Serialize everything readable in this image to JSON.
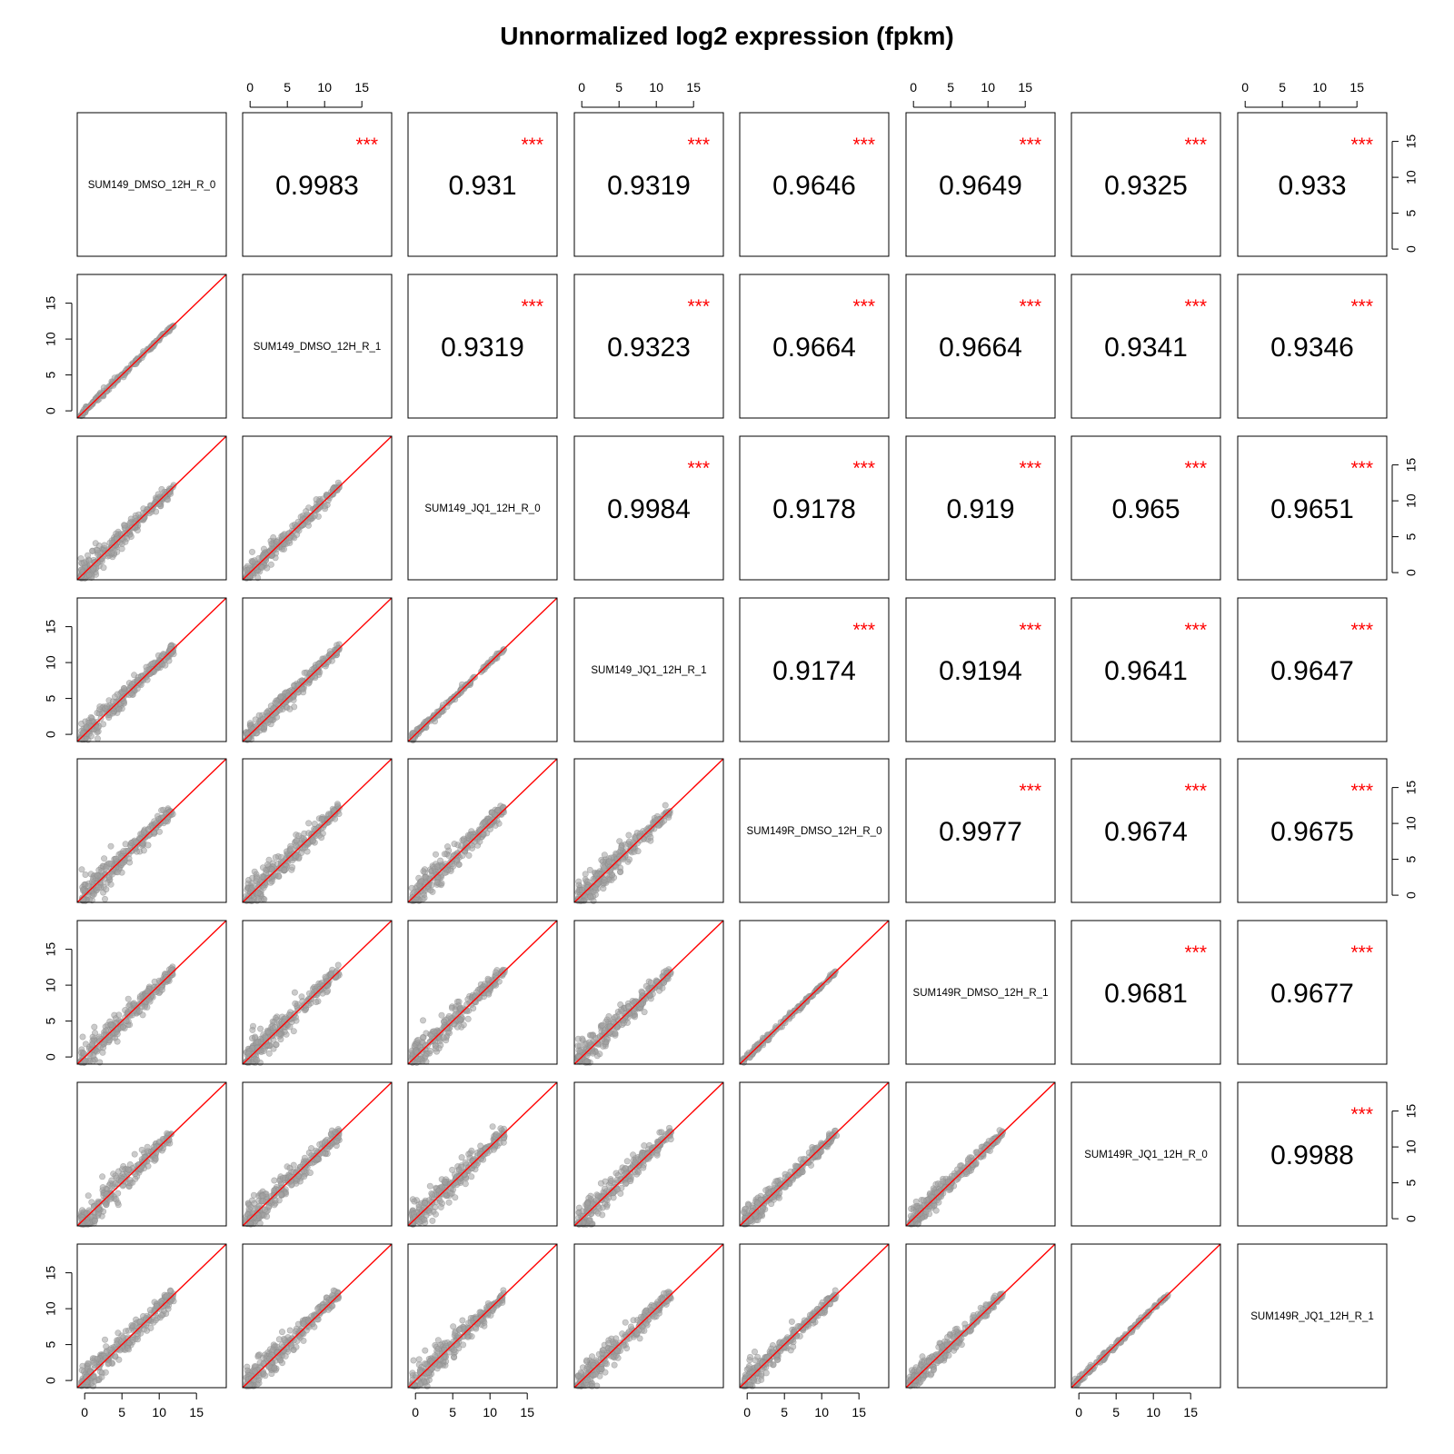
{
  "chart_data": {
    "type": "scatter",
    "title": "Unnormalized log2 expression (fpkm)",
    "matrix_type": "pairs plot: lower panels scatter with red y=x line, diagonal sample names, upper panels correlation coefficients",
    "axis_range": [
      -1,
      19
    ],
    "ticks": [
      0,
      5,
      10,
      15
    ],
    "tick_labels": [
      "0",
      "5",
      "10",
      "15"
    ],
    "samples": [
      "SUM149_DMSO_12H_R_0",
      "SUM149_DMSO_12H_R_1",
      "SUM149_JQ1_12H_R_0",
      "SUM149_JQ1_12H_R_1",
      "SUM149R_DMSO_12H_R_0",
      "SUM149R_DMSO_12H_R_1",
      "SUM149R_JQ1_12H_R_0",
      "SUM149R_JQ1_12H_R_1"
    ],
    "significance_label": "***",
    "correlations": [
      {
        "row": 0,
        "col": 1,
        "label": "0.9983"
      },
      {
        "row": 0,
        "col": 2,
        "label": "0.931"
      },
      {
        "row": 0,
        "col": 3,
        "label": "0.9319"
      },
      {
        "row": 0,
        "col": 4,
        "label": "0.9646"
      },
      {
        "row": 0,
        "col": 5,
        "label": "0.9649"
      },
      {
        "row": 0,
        "col": 6,
        "label": "0.9325"
      },
      {
        "row": 0,
        "col": 7,
        "label": "0.933"
      },
      {
        "row": 1,
        "col": 2,
        "label": "0.9319"
      },
      {
        "row": 1,
        "col": 3,
        "label": "0.9323"
      },
      {
        "row": 1,
        "col": 4,
        "label": "0.9664"
      },
      {
        "row": 1,
        "col": 5,
        "label": "0.9664"
      },
      {
        "row": 1,
        "col": 6,
        "label": "0.9341"
      },
      {
        "row": 1,
        "col": 7,
        "label": "0.9346"
      },
      {
        "row": 2,
        "col": 3,
        "label": "0.9984"
      },
      {
        "row": 2,
        "col": 4,
        "label": "0.9178"
      },
      {
        "row": 2,
        "col": 5,
        "label": "0.919"
      },
      {
        "row": 2,
        "col": 6,
        "label": "0.965"
      },
      {
        "row": 2,
        "col": 7,
        "label": "0.9651"
      },
      {
        "row": 3,
        "col": 4,
        "label": "0.9174"
      },
      {
        "row": 3,
        "col": 5,
        "label": "0.9194"
      },
      {
        "row": 3,
        "col": 6,
        "label": "0.9641"
      },
      {
        "row": 3,
        "col": 7,
        "label": "0.9647"
      },
      {
        "row": 4,
        "col": 5,
        "label": "0.9977"
      },
      {
        "row": 4,
        "col": 6,
        "label": "0.9674"
      },
      {
        "row": 4,
        "col": 7,
        "label": "0.9675"
      },
      {
        "row": 5,
        "col": 6,
        "label": "0.9681"
      },
      {
        "row": 5,
        "col": 7,
        "label": "0.9677"
      },
      {
        "row": 6,
        "col": 7,
        "label": "0.9988"
      }
    ],
    "scatter_x_range": [
      -0.5,
      12
    ],
    "reference_line": "y = x",
    "colors": {
      "points": "#8c8c8c",
      "point_fill": "#a0a0a0",
      "reference_line": "#ff0000",
      "stars": "#ff0000",
      "frame": "#000000"
    }
  }
}
